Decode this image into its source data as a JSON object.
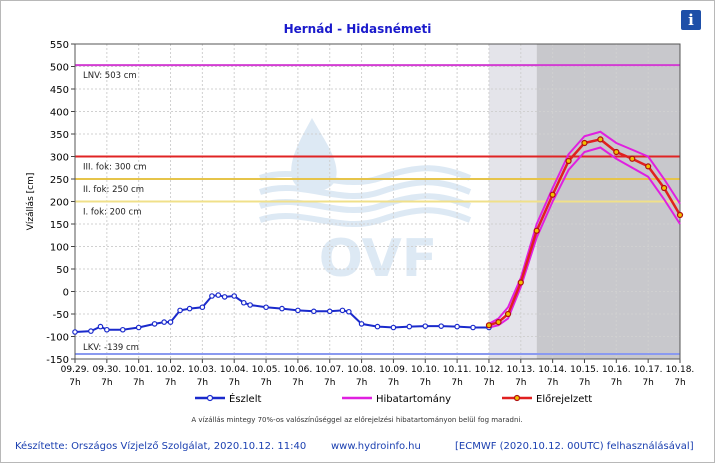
{
  "chart_data": {
    "type": "line",
    "title": "Hernád - Hidasnémeti",
    "ylabel": "Vízállás [cm]",
    "ylim": [
      -150,
      550
    ],
    "yticks": [
      -150,
      -100,
      -50,
      0,
      50,
      100,
      150,
      200,
      250,
      300,
      350,
      400,
      450,
      500,
      550
    ],
    "xlim": [
      0,
      19
    ],
    "x_tick_dates": [
      "09.29.",
      "09.30.",
      "10.01.",
      "10.02.",
      "10.03.",
      "10.04.",
      "10.05.",
      "10.06.",
      "10.07.",
      "10.08.",
      "10.09.",
      "10.10.",
      "10.11.",
      "10.12.",
      "10.13.",
      "10.14.",
      "10.15.",
      "10.16.",
      "10.17.",
      "10.18."
    ],
    "x_tick_hour": "7h",
    "grid": true,
    "legend_position": "bottom",
    "reference_lines": [
      {
        "label": "LNV: 503 cm",
        "value": 503,
        "color": "#d23cd2"
      },
      {
        "label": "III. fok: 300 cm",
        "value": 300,
        "color": "#e02424"
      },
      {
        "label": "II. fok: 250 cm",
        "value": 250,
        "color": "#e6c44a"
      },
      {
        "label": "I. fok: 200 cm",
        "value": 200,
        "color": "#f0e08a"
      },
      {
        "label": "LKV: -139 cm",
        "value": -139,
        "color": "#8a9af0"
      }
    ],
    "series": [
      {
        "name": "Észlelt",
        "color": "#1a2acc",
        "x": [
          0,
          0.5,
          0.8,
          1.0,
          1.5,
          2.0,
          2.5,
          2.8,
          3.0,
          3.3,
          3.6,
          4.0,
          4.3,
          4.5,
          4.7,
          5.0,
          5.3,
          5.5,
          6.0,
          6.5,
          7.0,
          7.5,
          8.0,
          8.4,
          8.6,
          9.0,
          9.5,
          10.0,
          10.5,
          11.0,
          11.5,
          12.0,
          12.5,
          13.0
        ],
        "y": [
          -90,
          -88,
          -78,
          -85,
          -85,
          -80,
          -72,
          -68,
          -68,
          -42,
          -38,
          -35,
          -10,
          -8,
          -12,
          -10,
          -25,
          -30,
          -35,
          -38,
          -42,
          -44,
          -44,
          -42,
          -45,
          -72,
          -78,
          -80,
          -78,
          -77,
          -77,
          -78,
          -80,
          -80
        ]
      },
      {
        "name": "Hibatartomány",
        "color": "#e020e0",
        "x": [
          13.0,
          13.3,
          13.6,
          14.0,
          14.5,
          15.0,
          15.5,
          16.0,
          16.5,
          17.0,
          17.5,
          18.0,
          18.5,
          19.0
        ],
        "upper": [
          -72,
          -60,
          -35,
          30,
          150,
          230,
          305,
          345,
          355,
          330,
          315,
          300,
          250,
          195
        ],
        "lower": [
          -80,
          -75,
          -60,
          10,
          120,
          200,
          270,
          310,
          320,
          295,
          275,
          255,
          205,
          150
        ]
      },
      {
        "name": "Előrejelzett",
        "color": "#e02020",
        "x": [
          13.0,
          13.3,
          13.6,
          14.0,
          14.5,
          15.0,
          15.5,
          16.0,
          16.5,
          17.0,
          17.5,
          18.0,
          18.5,
          19.0
        ],
        "y": [
          -75,
          -68,
          -50,
          20,
          135,
          215,
          290,
          330,
          338,
          310,
          295,
          278,
          230,
          170
        ]
      }
    ],
    "annotations": [
      "A vízállás mintegy 70%-os valószínűséggel az előrejelzési hibatartományon belül fog maradni."
    ],
    "shading": [
      {
        "from": 13.0,
        "to": 14.5,
        "color": "#e4e4ea"
      },
      {
        "from": 14.5,
        "to": 19.0,
        "color": "#c8c8cc"
      }
    ]
  },
  "header": {
    "title": "Hernád - Hidasnémeti",
    "info_icon": "i"
  },
  "footer": {
    "author": "Készítette: Országos Vízjelző Szolgálat, 2020.10.12. 11:40",
    "website": "www.hydroinfo.hu",
    "model": "[ECMWF (2020.10.12. 00UTC) felhasználásával]"
  },
  "colors": {
    "observed": "#1a2acc",
    "error_band": "#e020e0",
    "forecast": "#e02020",
    "text_blue": "#1a3fb0"
  }
}
